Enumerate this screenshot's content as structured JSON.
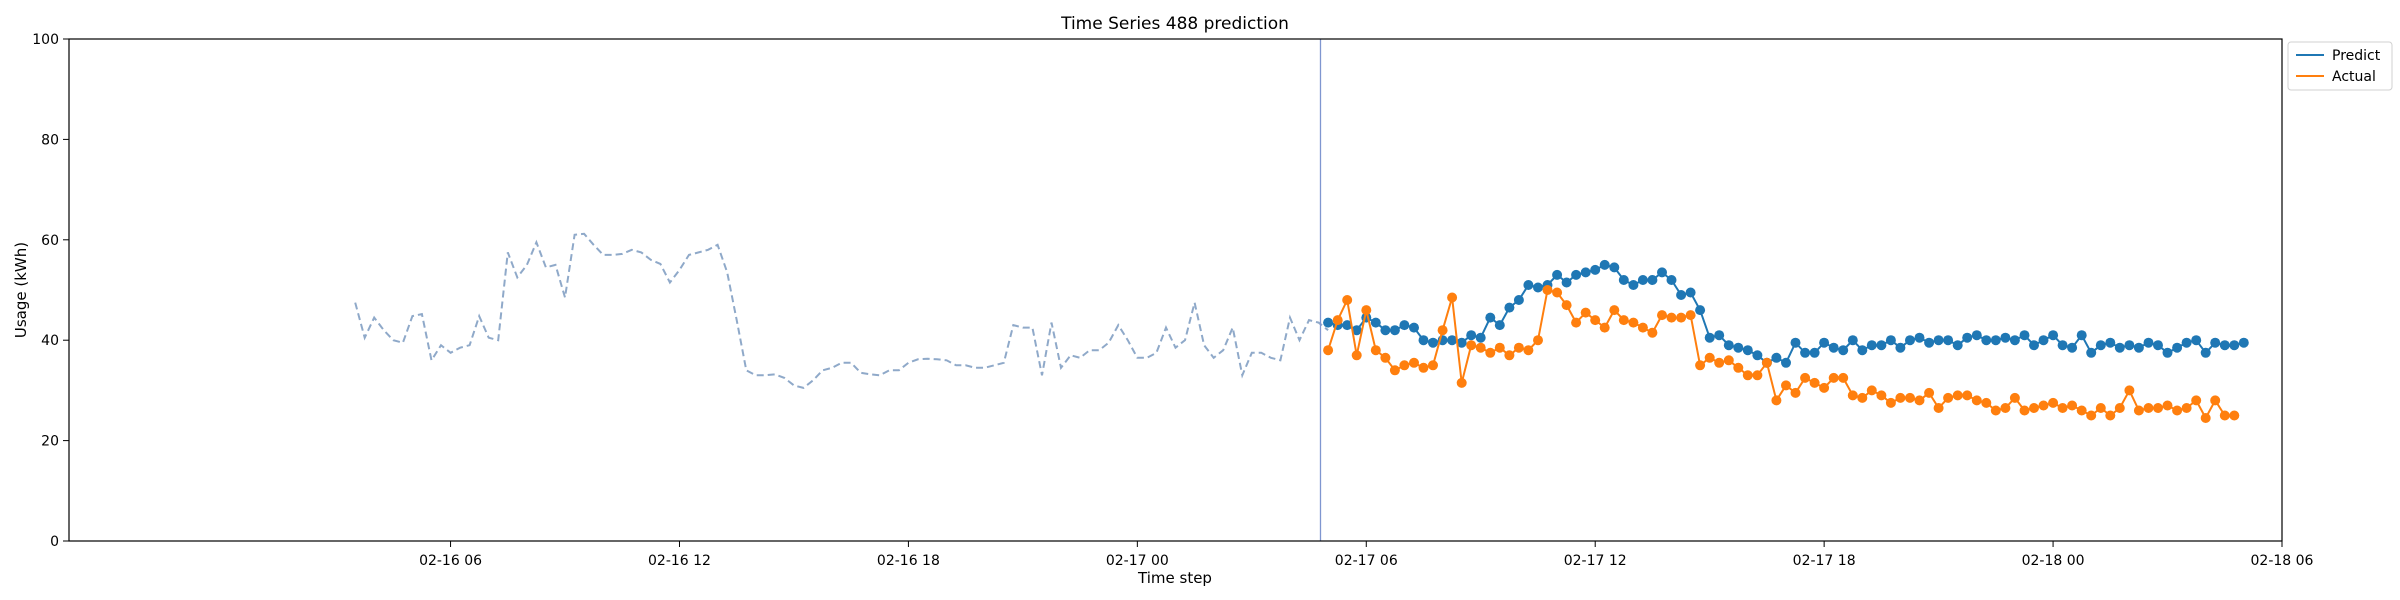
{
  "chart_data": {
    "type": "line",
    "title": "Time Series 488 prediction",
    "xlabel": "Time step",
    "ylabel": "Usage (kWh)",
    "x_range_hours": [
      -4,
      54
    ],
    "x_ticks": [
      {
        "h": 6,
        "label": "02-16 06"
      },
      {
        "h": 12,
        "label": "02-16 12"
      },
      {
        "h": 18,
        "label": "02-16 18"
      },
      {
        "h": 24,
        "label": "02-17 00"
      },
      {
        "h": 30,
        "label": "02-17 06"
      },
      {
        "h": 36,
        "label": "02-17 12"
      },
      {
        "h": 42,
        "label": "02-17 18"
      },
      {
        "h": 48,
        "label": "02-18 00"
      },
      {
        "h": 54,
        "label": "02-18 06"
      }
    ],
    "ylim": [
      0,
      100
    ],
    "y_ticks": [
      0,
      20,
      40,
      60,
      80,
      100
    ],
    "forecast_start_h": 28.8,
    "legend": {
      "position": "top-right outside",
      "entries": [
        "Predict",
        "Actual"
      ]
    },
    "colors": {
      "history": "#8fa9c9",
      "predict": "#1f77b4",
      "actual": "#ff7f0e",
      "divider": "#7f96d0"
    },
    "history": {
      "start_h": 3.5,
      "step_h": 0.25,
      "values": [
        47.5,
        40.5,
        44.5,
        42,
        40,
        39.5,
        44.8,
        45.2,
        36,
        39,
        37.5,
        38.5,
        39,
        44.8,
        40.5,
        40,
        57.5,
        52.5,
        55,
        59.5,
        54.5,
        55,
        48.5,
        61,
        61.2,
        59,
        57,
        57,
        57.2,
        58,
        57.5,
        56,
        55.2,
        51.5,
        54,
        57,
        57.5,
        58,
        59,
        53.5,
        44,
        34,
        33,
        33,
        33.2,
        32.5,
        31,
        30.5,
        32,
        34,
        34.5,
        35.5,
        35.5,
        33.5,
        33.2,
        33,
        34,
        34,
        35.5,
        36.2,
        36.3,
        36.2,
        36,
        35,
        35,
        34.5,
        34.5,
        35,
        35.5,
        43,
        42.5,
        42.5,
        33,
        43.5,
        34.5,
        37,
        36.5,
        38,
        38,
        39.5,
        43,
        40,
        36.5,
        36.5,
        37.5,
        42.5,
        38.5,
        40,
        47.5,
        39,
        36.5,
        38,
        42.5,
        33,
        37.5,
        37.5,
        36.5,
        36,
        44.5,
        40,
        44,
        43.5,
        42
      ]
    },
    "series": [
      {
        "name": "Predict",
        "start_h": 29,
        "step_h": 0.25,
        "values": [
          43.5,
          43,
          43,
          42,
          44.5,
          43.5,
          42,
          42,
          43,
          42.5,
          40,
          39.5,
          40,
          40,
          39.5,
          41,
          40.5,
          44.5,
          43,
          46.5,
          48,
          51,
          50.5,
          51,
          53,
          51.5,
          53,
          53.5,
          54,
          55,
          54.5,
          52,
          51,
          52,
          52,
          53.5,
          52,
          49,
          49.5,
          46,
          40.5,
          41,
          39,
          38.5,
          38,
          37,
          35.5,
          36.5,
          35.5,
          39.5,
          37.5,
          37.5,
          39.5,
          38.5,
          38,
          40,
          38,
          39,
          39,
          40,
          38.5,
          40,
          40.5,
          39.5,
          40,
          40,
          39,
          40.5,
          41,
          40,
          40,
          40.5,
          40,
          41,
          39,
          40,
          41,
          39,
          38.5,
          41,
          37.5,
          39,
          39.5,
          38.5,
          39,
          38.5,
          39.5,
          39,
          37.5,
          38.5,
          39.5,
          40,
          37.5,
          39.5,
          39,
          39,
          39.5
        ]
      },
      {
        "name": "Actual",
        "start_h": 29,
        "step_h": 0.25,
        "values": [
          38,
          44,
          48,
          37,
          46,
          38,
          36.5,
          34,
          35,
          35.5,
          34.5,
          35,
          42,
          48.5,
          31.5,
          39,
          38.5,
          37.5,
          38.5,
          37,
          38.5,
          38,
          40,
          50,
          49.5,
          47,
          43.5,
          45.5,
          44,
          42.5,
          46,
          44,
          43.5,
          42.5,
          41.5,
          45,
          44.5,
          44.5,
          45,
          35,
          36.5,
          35.5,
          36,
          34.5,
          33,
          33,
          35.5,
          28,
          31,
          29.5,
          32.5,
          31.5,
          30.5,
          32.5,
          32.5,
          29,
          28.5,
          30,
          29,
          27.5,
          28.5,
          28.5,
          28,
          29.5,
          26.5,
          28.5,
          29,
          29,
          28,
          27.5,
          26,
          26.5,
          28.5,
          26,
          26.5,
          27,
          27.5,
          26.5,
          27,
          26,
          25,
          26.5,
          25,
          26.5,
          30,
          26,
          26.5,
          26.5,
          27,
          26,
          26.5,
          28,
          24.5,
          28,
          25,
          25
        ]
      }
    ]
  }
}
